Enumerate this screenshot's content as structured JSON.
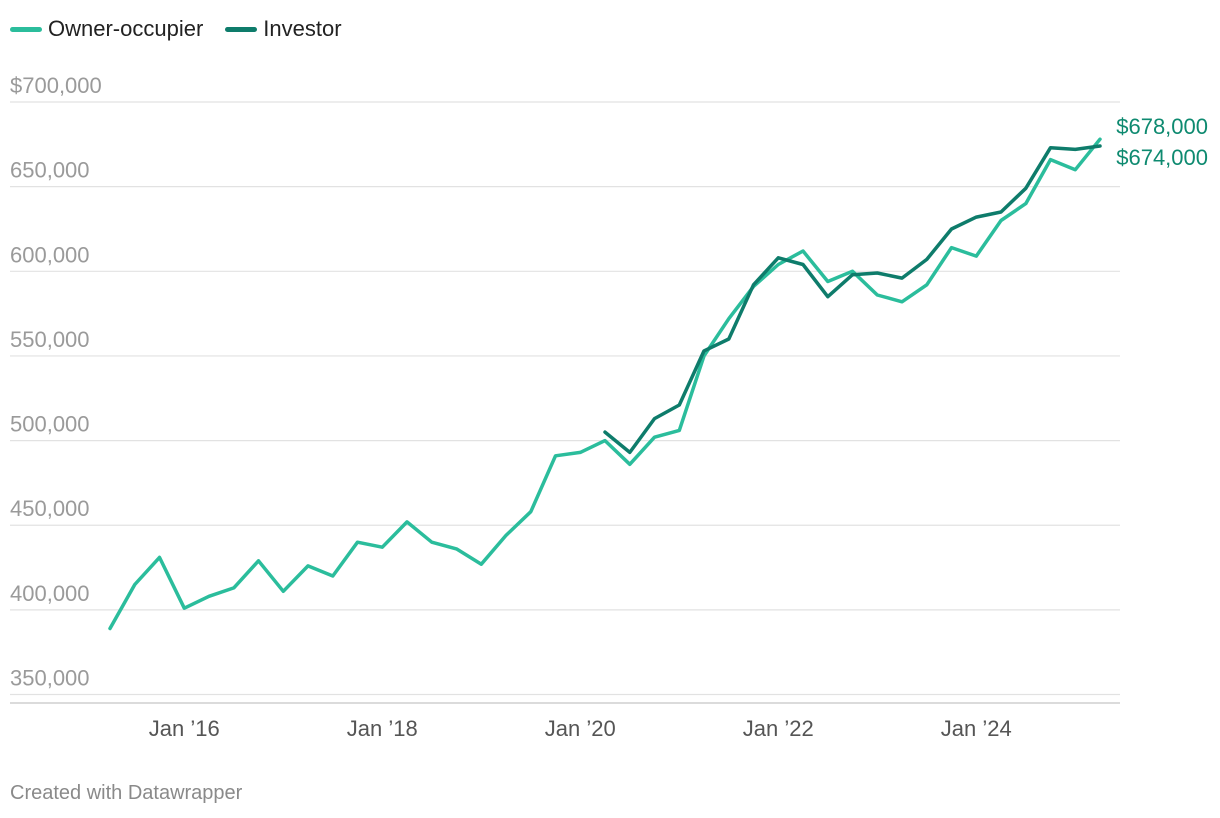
{
  "chart_data": {
    "type": "line",
    "series": [
      {
        "name": "Owner-occupier",
        "color": "#2bbd9c",
        "end_label": "$678,000",
        "x": [
          "2015-04",
          "2015-07",
          "2015-10",
          "2016-01",
          "2016-04",
          "2016-07",
          "2016-10",
          "2017-01",
          "2017-04",
          "2017-07",
          "2017-10",
          "2018-01",
          "2018-04",
          "2018-07",
          "2018-10",
          "2019-01",
          "2019-04",
          "2019-07",
          "2019-10",
          "2020-01",
          "2020-04",
          "2020-07",
          "2020-10",
          "2021-01",
          "2021-04",
          "2021-07",
          "2021-10",
          "2022-01",
          "2022-04",
          "2022-07",
          "2022-10",
          "2023-01",
          "2023-04",
          "2023-07",
          "2023-10",
          "2024-01",
          "2024-04",
          "2024-07",
          "2024-10",
          "2025-01",
          "2025-04"
        ],
        "values": [
          389000,
          415000,
          431000,
          401000,
          408000,
          413000,
          429000,
          411000,
          426000,
          420000,
          440000,
          437000,
          452000,
          440000,
          436000,
          427000,
          444000,
          458000,
          491000,
          493000,
          500000,
          486000,
          502000,
          506000,
          550000,
          572000,
          591000,
          604000,
          612000,
          594000,
          600000,
          586000,
          582000,
          592000,
          614000,
          609000,
          630000,
          640000,
          666000,
          660000,
          678000
        ]
      },
      {
        "name": "Investor",
        "color": "#0e7c6b",
        "end_label": "$674,000",
        "x": [
          "2020-04",
          "2020-07",
          "2020-10",
          "2021-01",
          "2021-04",
          "2021-07",
          "2021-10",
          "2022-01",
          "2022-04",
          "2022-07",
          "2022-10",
          "2023-01",
          "2023-04",
          "2023-07",
          "2023-10",
          "2024-01",
          "2024-04",
          "2024-07",
          "2024-10",
          "2025-01",
          "2025-04"
        ],
        "values": [
          505000,
          493000,
          513000,
          521000,
          553000,
          560000,
          592000,
          608000,
          604000,
          585000,
          598000,
          599000,
          596000,
          607000,
          625000,
          632000,
          635000,
          649000,
          673000,
          672000,
          674000
        ]
      }
    ],
    "y_ticks": [
      "$700,000",
      "650,000",
      "600,000",
      "550,000",
      "500,000",
      "450,000",
      "400,000",
      "350,000"
    ],
    "y_tick_values": [
      700000,
      650000,
      600000,
      550000,
      500000,
      450000,
      400000,
      350000
    ],
    "x_ticks": [
      "Jan ’16",
      "Jan ’18",
      "Jan ’20",
      "Jan ’22",
      "Jan ’24"
    ],
    "x_tick_dates": [
      "2016-01",
      "2018-01",
      "2020-01",
      "2022-01",
      "2024-01"
    ],
    "ylim": [
      345000,
      700000
    ],
    "xlim": [
      "2015-04",
      "2025-04"
    ],
    "grid": true,
    "legend": "top-left"
  },
  "footer": "Created with Datawrapper"
}
